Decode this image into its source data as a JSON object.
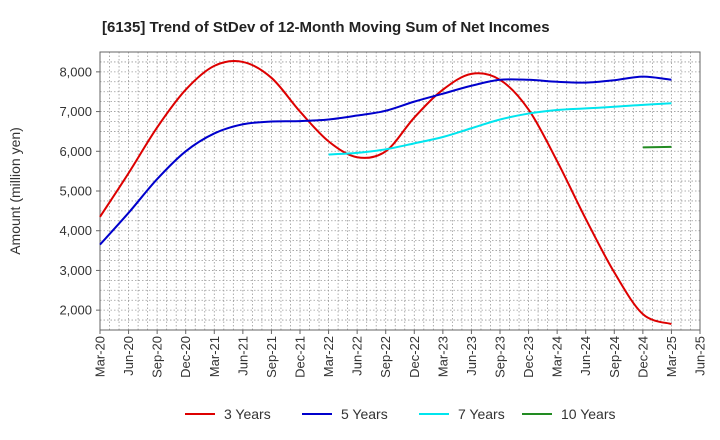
{
  "chart_data": {
    "type": "line",
    "title": "[6135]  Trend of StDev of 12-Month Moving Sum of Net Incomes",
    "xlabel": "",
    "ylabel": "Amount (million yen)",
    "ylim": [
      1500,
      8500
    ],
    "yticks": [
      2000,
      3000,
      4000,
      5000,
      6000,
      7000,
      8000
    ],
    "ytick_labels": [
      "2,000",
      "3,000",
      "4,000",
      "5,000",
      "6,000",
      "7,000",
      "8,000"
    ],
    "xlim": [
      "Mar-20",
      "Jun-25"
    ],
    "xtick_labels": [
      "Mar-20",
      "Jun-20",
      "Sep-20",
      "Dec-20",
      "Mar-21",
      "Jun-21",
      "Sep-21",
      "Dec-21",
      "Mar-22",
      "Jun-22",
      "Sep-22",
      "Dec-22",
      "Mar-23",
      "Jun-23",
      "Sep-23",
      "Dec-23",
      "Mar-24",
      "Jun-24",
      "Sep-24",
      "Dec-24",
      "Mar-25",
      "Jun-25"
    ],
    "grid": true,
    "legend_position": "bottom",
    "series": [
      {
        "name": "3 Years",
        "color": "#dd0000",
        "x": [
          "Mar-20",
          "Jun-20",
          "Sep-20",
          "Dec-20",
          "Mar-21",
          "Jun-21",
          "Sep-21",
          "Dec-21",
          "Mar-22",
          "Jun-22",
          "Sep-22",
          "Dec-22",
          "Mar-23",
          "Jun-23",
          "Sep-23",
          "Dec-23",
          "Mar-24",
          "Jun-24",
          "Sep-24",
          "Dec-24",
          "Mar-25"
        ],
        "values": [
          4350,
          5450,
          6600,
          7550,
          8150,
          8250,
          7850,
          7000,
          6250,
          5850,
          6000,
          6850,
          7550,
          7950,
          7800,
          7050,
          5750,
          4300,
          2950,
          1900,
          1650
        ]
      },
      {
        "name": "5 Years",
        "color": "#0000cc",
        "x": [
          "Mar-20",
          "Jun-20",
          "Sep-20",
          "Dec-20",
          "Mar-21",
          "Jun-21",
          "Sep-21",
          "Dec-21",
          "Mar-22",
          "Jun-22",
          "Sep-22",
          "Dec-22",
          "Mar-23",
          "Jun-23",
          "Sep-23",
          "Dec-23",
          "Mar-24",
          "Jun-24",
          "Sep-24",
          "Dec-24",
          "Mar-25"
        ],
        "values": [
          3650,
          4450,
          5300,
          6000,
          6450,
          6680,
          6750,
          6760,
          6800,
          6900,
          7020,
          7250,
          7450,
          7650,
          7800,
          7800,
          7750,
          7730,
          7790,
          7880,
          7800
        ]
      },
      {
        "name": "7 Years",
        "color": "#00e5ee",
        "x": [
          "Mar-22",
          "Jun-22",
          "Sep-22",
          "Dec-22",
          "Mar-23",
          "Jun-23",
          "Sep-23",
          "Dec-23",
          "Mar-24",
          "Jun-24",
          "Sep-24",
          "Dec-24",
          "Mar-25"
        ],
        "values": [
          5920,
          5960,
          6050,
          6200,
          6360,
          6580,
          6800,
          6950,
          7040,
          7080,
          7120,
          7170,
          7210
        ]
      },
      {
        "name": "10 Years",
        "color": "#228b22",
        "x": [
          "Dec-24",
          "Mar-25"
        ],
        "values": [
          6100,
          6110
        ]
      }
    ]
  }
}
